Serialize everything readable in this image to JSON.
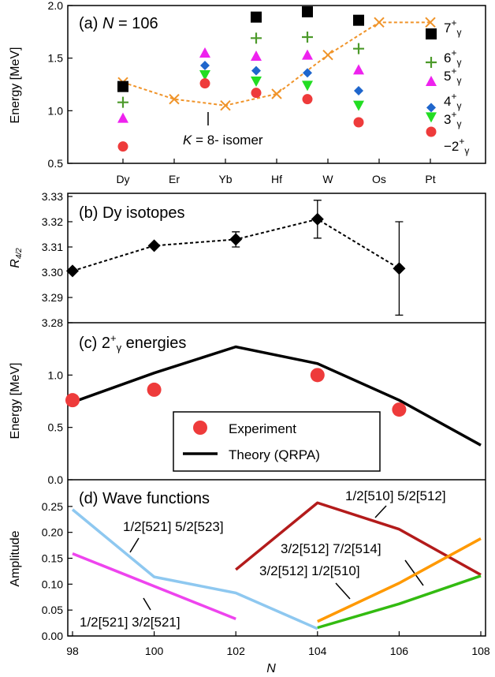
{
  "chart_data": [
    {
      "type": "scatter",
      "panel": "(a)",
      "title_prefix": "(a) ",
      "title_var": "N",
      "title_rest": " = 106",
      "ylabel": "Energy [MeV]",
      "ylim": [
        0.5,
        2.0
      ],
      "yticks": [
        "0.5",
        "1.0",
        "1.5",
        "2.0"
      ],
      "categories": [
        "Dy",
        "Er",
        "Yb",
        "Hf",
        "W",
        "Os",
        "Pt"
      ],
      "series": [
        {
          "name": "7+γ",
          "label_main": "7",
          "label_sup": "+",
          "label_sub": "γ",
          "marker": "square",
          "color": "#000000",
          "points": [
            {
              "x": "Dy",
              "y": 1.23
            },
            {
              "x": "Hf",
              "y": 1.89
            },
            {
              "x": "W",
              "y": 1.94
            },
            {
              "x": "Os",
              "y": 1.86
            },
            {
              "x": "Pt",
              "y": 1.73
            }
          ]
        },
        {
          "name": "6+γ",
          "label_main": "6",
          "label_sup": "+",
          "label_sub": "γ",
          "marker": "plus",
          "color": "#4c9a2a",
          "points": [
            {
              "x": "Dy",
              "y": 1.08
            },
            {
              "x": "Hf",
              "y": 1.69
            },
            {
              "x": "W",
              "y": 1.7
            },
            {
              "x": "Os",
              "y": 1.59
            },
            {
              "x": "Pt",
              "y": 1.46
            }
          ]
        },
        {
          "name": "5+γ",
          "label_main": "5",
          "label_sup": "+",
          "label_sub": "γ",
          "marker": "triangle-up",
          "color": "#ee22ee",
          "points": [
            {
              "x": "Dy",
              "y": 0.93
            },
            {
              "x": "Yb",
              "y": 1.55
            },
            {
              "x": "Hf",
              "y": 1.52
            },
            {
              "x": "W",
              "y": 1.53
            },
            {
              "x": "Os",
              "y": 1.39
            },
            {
              "x": "Pt",
              "y": 1.28
            }
          ]
        },
        {
          "name": "4+γ",
          "label_main": "4",
          "label_sup": "+",
          "label_sub": "γ",
          "marker": "diamond",
          "color": "#1f66cc",
          "points": [
            {
              "x": "Yb",
              "y": 1.43
            },
            {
              "x": "Hf",
              "y": 1.38
            },
            {
              "x": "W",
              "y": 1.36
            },
            {
              "x": "Os",
              "y": 1.19
            },
            {
              "x": "Pt",
              "y": 1.03
            }
          ]
        },
        {
          "name": "3+γ",
          "label_main": "3",
          "label_sup": "+",
          "label_sub": "γ",
          "marker": "triangle-down",
          "color": "#22dd22",
          "points": [
            {
              "x": "Yb",
              "y": 1.34
            },
            {
              "x": "Hf",
              "y": 1.28
            },
            {
              "x": "W",
              "y": 1.24
            },
            {
              "x": "Os",
              "y": 1.05
            },
            {
              "x": "Pt",
              "y": 0.94
            }
          ]
        },
        {
          "name": "2+γ",
          "label_main": "2",
          "label_sup": "+",
          "label_sub": "γ",
          "marker": "circle",
          "color": "#ee3b3b",
          "points": [
            {
              "x": "Dy",
              "y": 0.66
            },
            {
              "x": "Yb",
              "y": 1.26
            },
            {
              "x": "Hf",
              "y": 1.17
            },
            {
              "x": "W",
              "y": 1.11
            },
            {
              "x": "Os",
              "y": 0.89
            },
            {
              "x": "Pt",
              "y": 0.8
            }
          ]
        }
      ],
      "isomer": {
        "label_var": "K",
        "label_rest": " = 8- isomer",
        "color": "#f0942a",
        "points": [
          {
            "x": "Dy",
            "y": 1.27
          },
          {
            "x": "Er",
            "y": 1.11
          },
          {
            "x": "Yb",
            "y": 1.05
          },
          {
            "x": "Hf",
            "y": 1.16
          },
          {
            "x": "W",
            "y": 1.53
          },
          {
            "x": "Os",
            "y": 1.84
          },
          {
            "x": "Pt",
            "y": 1.84
          }
        ]
      }
    },
    {
      "type": "line",
      "panel": "(b)",
      "title": "(b) Dy isotopes",
      "ylabel_main": "R",
      "ylabel_sub": "4/2",
      "ylim": [
        3.28,
        3.33
      ],
      "yticks": [
        "3.28",
        "3.29",
        "3.30",
        "3.31",
        "3.32",
        "3.33"
      ],
      "x": [
        98,
        100,
        102,
        104,
        106
      ],
      "y": [
        3.3005,
        3.3105,
        3.313,
        3.321,
        3.3015
      ],
      "yerr": [
        0,
        0,
        0.003,
        0.0075,
        0.0185
      ]
    },
    {
      "type": "line",
      "panel": "(c)",
      "title_prefix": "(c) 2",
      "title_sup": "+",
      "title_sub": "γ",
      "title_rest": " energies",
      "ylabel": "Energy [MeV]",
      "ylim": [
        0.0,
        1.5
      ],
      "yticks": [
        "0.0",
        "0.5",
        "1.0"
      ],
      "legend": [
        "Experiment",
        "Theory (QRPA)"
      ],
      "experiment": {
        "x": [
          98,
          100,
          104,
          106
        ],
        "y": [
          0.76,
          0.86,
          1.0,
          0.67
        ],
        "color": "#ee3b3b"
      },
      "theory": {
        "x": [
          98,
          100,
          102,
          104,
          106,
          108
        ],
        "y": [
          0.74,
          1.02,
          1.27,
          1.11,
          0.76,
          0.33
        ],
        "color": "#000000"
      }
    },
    {
      "type": "line",
      "panel": "(d)",
      "title": "(d) Wave functions",
      "ylabel": "Amplitude",
      "xlabel": "N",
      "ylim": [
        0.0,
        0.3
      ],
      "yticks": [
        "0.00",
        "0.05",
        "0.10",
        "0.15",
        "0.20",
        "0.25"
      ],
      "xticks": [
        "98",
        "100",
        "102",
        "104",
        "106",
        "108"
      ],
      "series": [
        {
          "name": "1/2[521] 5/2[523]",
          "color": "#8ec8f0",
          "x": [
            98,
            100,
            102,
            104
          ],
          "y": [
            0.244,
            0.114,
            0.083,
            0.014
          ]
        },
        {
          "name": "1/2[521] 3/2[521]",
          "color": "#ee44ee",
          "x": [
            98,
            102
          ],
          "y": [
            0.159,
            0.033
          ]
        },
        {
          "name": "1/2[510] 5/2[512]",
          "color": "#b31b1b",
          "x": [
            102,
            104,
            106,
            108
          ],
          "y": [
            0.128,
            0.257,
            0.206,
            0.118
          ]
        },
        {
          "name": "3/2[512] 7/2[514]",
          "color": "#ff9900",
          "x": [
            104,
            106,
            108
          ],
          "y": [
            0.028,
            0.102,
            0.188
          ]
        },
        {
          "name": "3/2[512] 1/2[510]",
          "color": "#33bb11",
          "x": [
            104,
            106,
            108
          ],
          "y": [
            0.016,
            0.062,
            0.116
          ]
        }
      ]
    }
  ]
}
